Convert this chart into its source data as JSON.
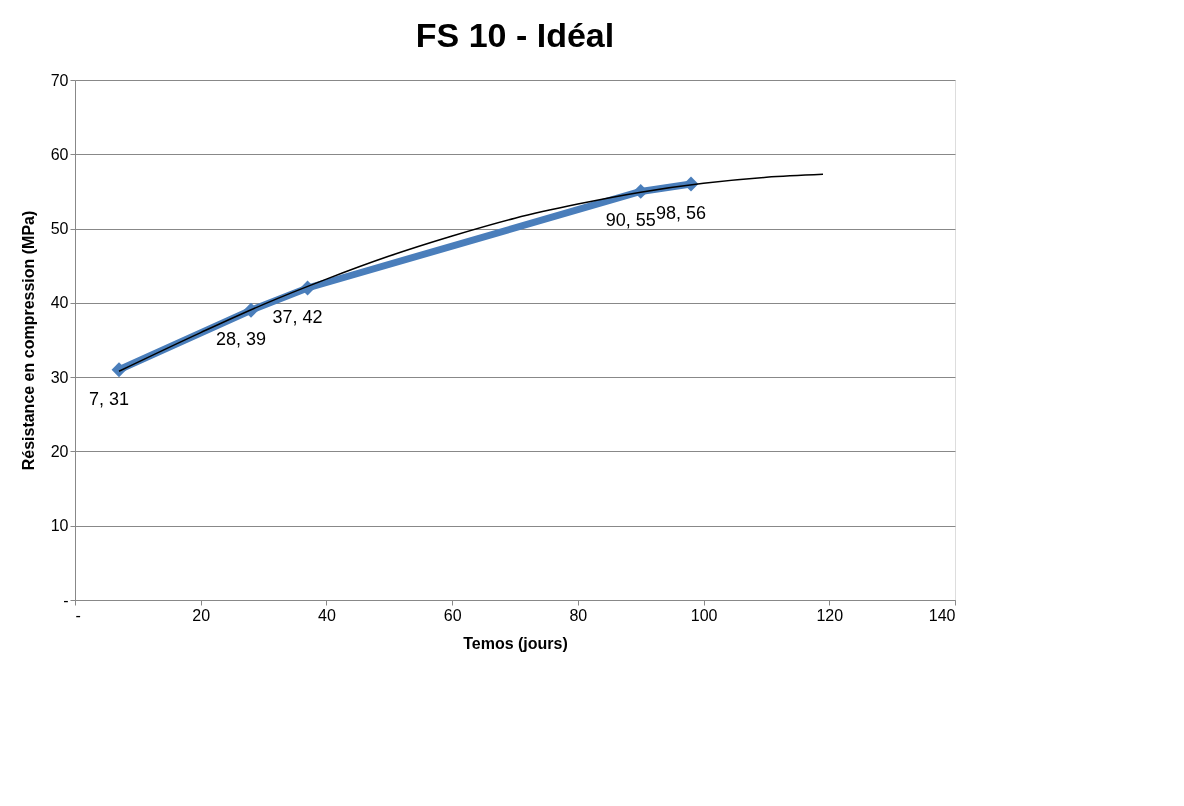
{
  "chart_data": {
    "type": "line",
    "title": "FS 10 - Idéal",
    "xlabel": "Temos (jours)",
    "ylabel": "Résistance en compression (MPa)",
    "xlim": [
      0,
      140
    ],
    "xticks": [
      {
        "value": 0,
        "label": "-"
      },
      20,
      40,
      60,
      80,
      100,
      120,
      140
    ],
    "ylim": [
      0,
      70
    ],
    "yticks": [
      {
        "value": 0,
        "label": "-"
      },
      10,
      20,
      30,
      40,
      50,
      60,
      70
    ],
    "grid": "y",
    "marker": "diamond",
    "line_style": "solid",
    "series": [
      {
        "color": "#4a7ebb",
        "x": [
          7,
          28,
          37,
          90,
          98
        ],
        "values": [
          31,
          39,
          42,
          55,
          56
        ],
        "value_labels": [
          "7, 31",
          "28, 39",
          "37, 42",
          "90, 55",
          "98, 56"
        ]
      },
      {
        "type": "line",
        "color": "#000000",
        "marker": "none",
        "x": [
          7,
          20,
          30,
          40,
          50,
          60,
          70,
          80,
          90,
          100,
          110,
          119
        ],
        "values": [
          30.8,
          36,
          39.8,
          43.2,
          46.3,
          49,
          51.4,
          53.3,
          54.9,
          56.1,
          56.9,
          57.3
        ]
      }
    ]
  }
}
